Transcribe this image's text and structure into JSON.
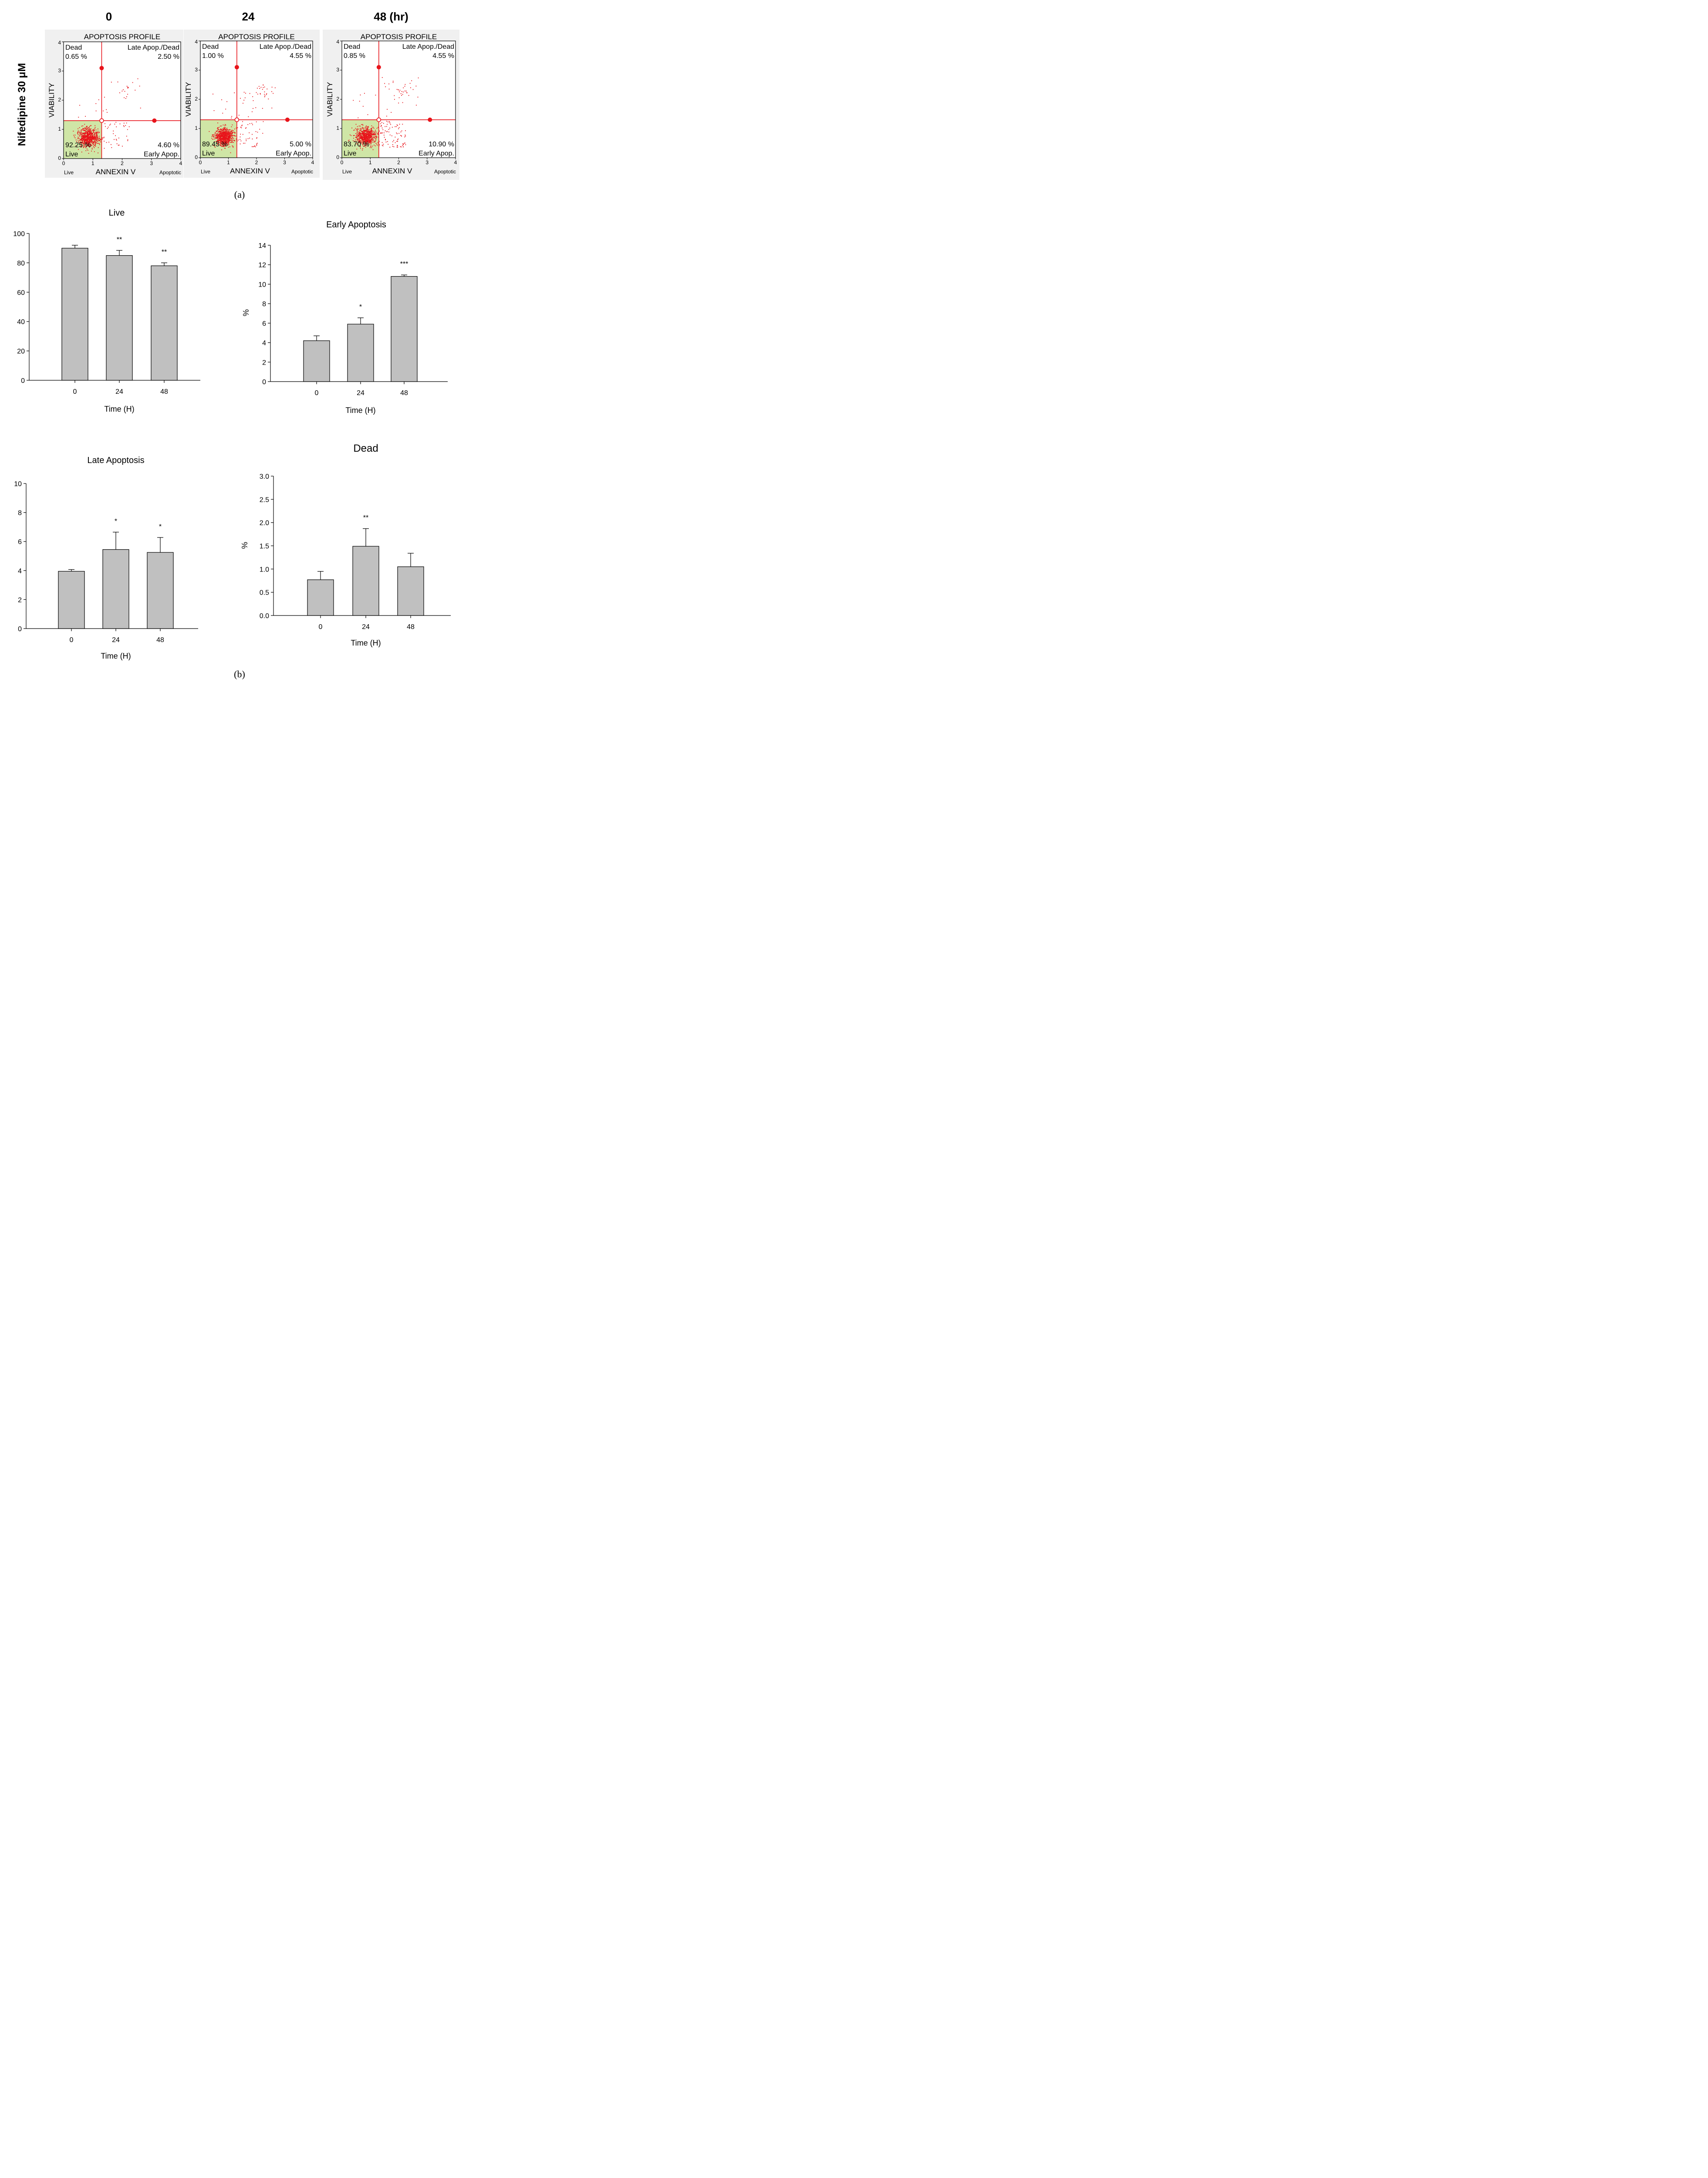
{
  "figure": {
    "row_label": "Nifedipine 30 μM",
    "time_headers": [
      "0",
      "24",
      "48 (hr)"
    ],
    "panel_a_label": "(a)",
    "panel_b_label": "(b)",
    "dot_color": "#e8141b",
    "live_region_color": "#cfe6a6",
    "bar_color": "#c0c0c0"
  },
  "chart_data": [
    {
      "type": "scatter",
      "title": "APOPTOSIS PROFILE",
      "xlabel": "ANNEXIN V",
      "ylabel": "VIABILITY",
      "x_left_label": "Live",
      "x_right_label": "Apoptotic",
      "xlim": [
        0,
        4
      ],
      "ylim": [
        0,
        4
      ],
      "x_ticks": [
        "0",
        "1",
        "2",
        "3",
        "4"
      ],
      "y_ticks": [
        "0",
        "1",
        "2",
        "3",
        "4"
      ],
      "gate": {
        "x": 1.3,
        "y": 1.3
      },
      "quadrants": {
        "dead": "Dead",
        "late": "Late Apop./Dead",
        "live": "Live",
        "early": "Early Apop."
      },
      "values": {
        "dead": "0.65 %",
        "late": "2.50 %",
        "live": "92.25 %",
        "early": "4.60 %"
      }
    },
    {
      "type": "scatter",
      "title": "APOPTOSIS PROFILE",
      "xlabel": "ANNEXIN V",
      "ylabel": "VIABILITY",
      "x_left_label": "Live",
      "x_right_label": "Apoptotic",
      "xlim": [
        0,
        4
      ],
      "ylim": [
        0,
        4
      ],
      "x_ticks": [
        "0",
        "1",
        "2",
        "3",
        "4"
      ],
      "y_ticks": [
        "0",
        "1",
        "2",
        "3",
        "4"
      ],
      "gate": {
        "x": 1.3,
        "y": 1.3
      },
      "quadrants": {
        "dead": "Dead",
        "late": "Late Apop./Dead",
        "live": "Live",
        "early": "Early Apop."
      },
      "values": {
        "dead": "1.00 %",
        "late": "4.55 %",
        "live": "89.45 %",
        "early": "5.00 %"
      }
    },
    {
      "type": "scatter",
      "title": "APOPTOSIS PROFILE",
      "xlabel": "ANNEXIN V",
      "ylabel": "VIABILITY",
      "x_left_label": "Live",
      "x_right_label": "Apoptotic",
      "xlim": [
        0,
        4
      ],
      "ylim": [
        0,
        4
      ],
      "x_ticks": [
        "0",
        "1",
        "2",
        "3",
        "4"
      ],
      "y_ticks": [
        "0",
        "1",
        "2",
        "3",
        "4"
      ],
      "gate": {
        "x": 1.3,
        "y": 1.3
      },
      "quadrants": {
        "dead": "Dead",
        "late": "Late Apop./Dead",
        "live": "Live",
        "early": "Early Apop."
      },
      "values": {
        "dead": "0.85 %",
        "late": "4.55 %",
        "live": "83.70 %",
        "early": "10.90 %"
      }
    },
    {
      "type": "bar",
      "title": "Live",
      "xlabel": "Time (H)",
      "ylabel": "",
      "categories": [
        "0",
        "24",
        "48"
      ],
      "values": [
        90,
        85,
        78
      ],
      "errors": [
        2,
        3.5,
        2
      ],
      "significance": [
        "",
        "**",
        "**"
      ],
      "ylim": [
        0,
        100
      ],
      "yticks": [
        "0",
        "20",
        "40",
        "60",
        "80",
        "100"
      ]
    },
    {
      "type": "bar",
      "title": "Early Apoptosis",
      "xlabel": "Time (H)",
      "ylabel": "%",
      "categories": [
        "0",
        "24",
        "48"
      ],
      "values": [
        4.2,
        5.9,
        10.8
      ],
      "errors": [
        0.5,
        0.65,
        0.15
      ],
      "significance": [
        "",
        "*",
        "***"
      ],
      "ylim": [
        0,
        14
      ],
      "yticks": [
        "0",
        "2",
        "4",
        "6",
        "8",
        "10",
        "12",
        "14"
      ]
    },
    {
      "type": "bar",
      "title": "Late Apoptosis",
      "xlabel": "Time (H)",
      "ylabel": "",
      "categories": [
        "0",
        "24",
        "48"
      ],
      "values": [
        3.95,
        5.45,
        5.25
      ],
      "errors": [
        0.12,
        1.2,
        1.03
      ],
      "significance": [
        "",
        "*",
        "*"
      ],
      "ylim": [
        0,
        10
      ],
      "yticks": [
        "0",
        "2",
        "4",
        "6",
        "8",
        "10"
      ]
    },
    {
      "type": "bar",
      "title": "Dead",
      "xlabel": "Time (H)",
      "ylabel": "%",
      "categories": [
        "0",
        "24",
        "48"
      ],
      "values": [
        0.77,
        1.49,
        1.05
      ],
      "errors": [
        0.18,
        0.38,
        0.29
      ],
      "significance": [
        "",
        "**",
        ""
      ],
      "ylim": [
        0,
        3
      ],
      "yticks": [
        "0.0",
        "0.5",
        "1.0",
        "1.5",
        "2.0",
        "2.5",
        "3.0"
      ]
    }
  ]
}
